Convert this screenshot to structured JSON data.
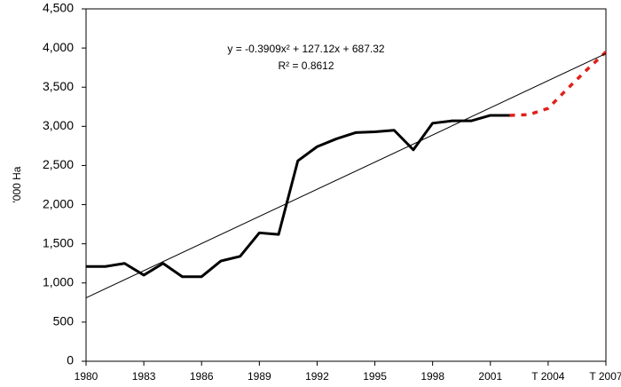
{
  "chart_data": {
    "type": "line",
    "y_label": "'000 Ha",
    "annotations": [
      "y = -0.3909x² + 127.12x + 687.32",
      "R² = 0.8612"
    ],
    "xlim": [
      1980,
      2007
    ],
    "xticks": [
      1980,
      1983,
      1986,
      1989,
      1992,
      1995,
      1998,
      2001,
      {
        "value": 2004,
        "label": "T 2004"
      },
      {
        "value": 2007,
        "label": "T 2007"
      }
    ],
    "ylim": [
      0,
      4500
    ],
    "yticks": [
      0,
      500,
      {
        "value": 1000,
        "label": "1,000"
      },
      {
        "value": 1500,
        "label": "1,500"
      },
      {
        "value": 2000,
        "label": "2,000"
      },
      {
        "value": 2500,
        "label": "2,500"
      },
      {
        "value": 3000,
        "label": "3,000"
      },
      {
        "value": 3500,
        "label": "3,500"
      },
      {
        "value": 4000,
        "label": "4,000"
      },
      {
        "value": 4500,
        "label": "4,500"
      }
    ],
    "grid": false,
    "series": [
      {
        "color": "#000000",
        "width": 3,
        "dashed": false,
        "x": [
          1980,
          1981,
          1982,
          1983,
          1984,
          1985,
          1986,
          1987,
          1988,
          1989,
          1990,
          1991,
          1992,
          1993,
          1994,
          1995,
          1996,
          1997,
          1998,
          1999,
          2000,
          2001,
          2002
        ],
        "values": [
          1210,
          1210,
          1250,
          1100,
          1250,
          1080,
          1080,
          1280,
          1340,
          1640,
          1620,
          2560,
          2740,
          2840,
          2920,
          2930,
          2950,
          2700,
          3040,
          3070,
          3070,
          3140,
          3140
        ]
      },
      {
        "color": "#e0201a",
        "width": 3.5,
        "dashed": true,
        "x": [
          2002,
          2003,
          2004,
          2005,
          2006,
          2007
        ],
        "values": [
          3140,
          3150,
          3230,
          3480,
          3720,
          3950
        ]
      },
      {
        "color": "#000000",
        "width": 1,
        "dashed": false,
        "x": [
          1980,
          2007
        ],
        "values": [
          810,
          3930
        ]
      }
    ]
  }
}
